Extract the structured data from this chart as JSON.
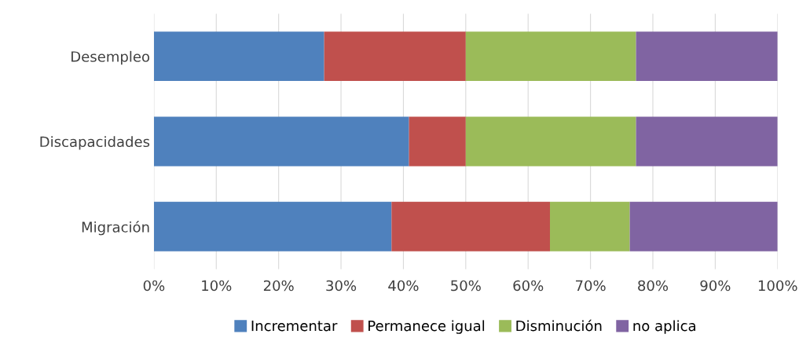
{
  "chart_data": {
    "type": "bar",
    "orientation": "horizontal",
    "stacked": true,
    "categories": [
      "Desempleo",
      "Discapacidades",
      "Migración"
    ],
    "series": [
      {
        "name": "Incrementar",
        "color": "#4f81bd",
        "values": [
          27.3,
          40.9,
          38.1
        ]
      },
      {
        "name": "Permanece igual",
        "color": "#c0504d",
        "values": [
          22.7,
          9.1,
          25.4
        ]
      },
      {
        "name": "Disminución",
        "color": "#9bbb59",
        "values": [
          27.3,
          27.3,
          12.8
        ]
      },
      {
        "name": "no aplica",
        "color": "#8064a2",
        "values": [
          22.7,
          22.7,
          23.7
        ]
      }
    ],
    "xlim": [
      0,
      100
    ],
    "xticks": [
      {
        "value": 0,
        "label": "0%"
      },
      {
        "value": 10,
        "label": "10%"
      },
      {
        "value": 20,
        "label": "20%"
      },
      {
        "value": 30,
        "label": "30%"
      },
      {
        "value": 40,
        "label": "40%"
      },
      {
        "value": 50,
        "label": "50%"
      },
      {
        "value": 60,
        "label": "60%"
      },
      {
        "value": 70,
        "label": "70%"
      },
      {
        "value": 80,
        "label": "80%"
      },
      {
        "value": 90,
        "label": "90%"
      },
      {
        "value": 100,
        "label": "100%"
      }
    ],
    "grid": "x",
    "legend": "bottom"
  }
}
